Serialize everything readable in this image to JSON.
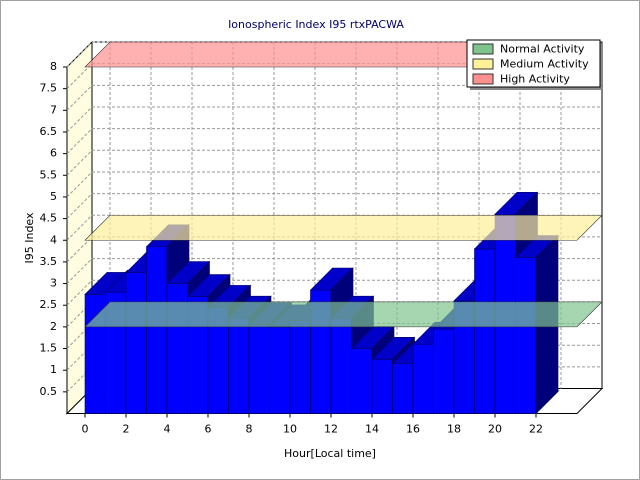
{
  "chart_data": {
    "type": "bar3d",
    "title": "Ionospheric Index I95 rtxPACWA",
    "xlabel": "Hour[Local time]",
    "ylabel": "I95 Index",
    "x": [
      0,
      1,
      2,
      3,
      4,
      5,
      6,
      7,
      8,
      9,
      10,
      11,
      12,
      13,
      14,
      15,
      16,
      17,
      18,
      19,
      20,
      21
    ],
    "values": [
      2.75,
      2.8,
      3.25,
      3.85,
      3.0,
      2.7,
      2.45,
      2.2,
      2.05,
      2.0,
      2.15,
      2.85,
      2.2,
      1.5,
      1.25,
      1.15,
      1.6,
      1.95,
      2.6,
      3.8,
      4.6,
      3.6
    ],
    "color": "#0000ff",
    "xlim": [
      0,
      24
    ],
    "xticks": [
      0,
      2,
      4,
      6,
      8,
      10,
      12,
      14,
      16,
      18,
      20,
      22
    ],
    "ylim": [
      0,
      8
    ],
    "yticks": [
      0.5,
      1,
      1.5,
      2,
      2.5,
      3,
      3.5,
      4,
      4.5,
      5,
      5.5,
      6,
      6.5,
      7,
      7.5,
      8
    ],
    "grid": true,
    "legend": "top-right",
    "bands": [
      {
        "name": "Normal Activity",
        "color": "#7fc48f",
        "value": 2
      },
      {
        "name": "Medium Activity",
        "color": "#fff09a",
        "value": 4
      },
      {
        "name": "High Activity",
        "color": "#ff9090",
        "value": 8
      }
    ]
  }
}
